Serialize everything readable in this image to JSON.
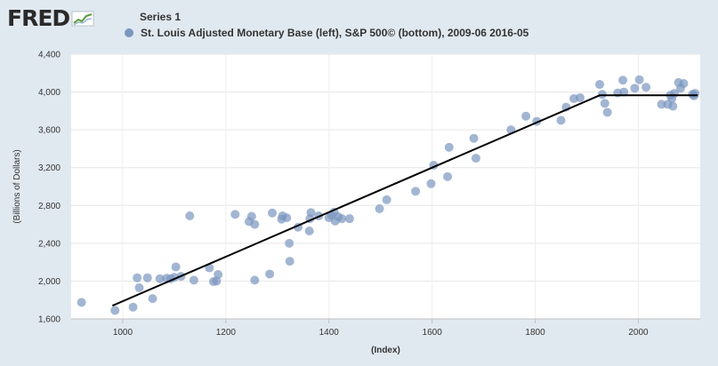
{
  "header": {
    "logo_text": "FRED",
    "logo_icon": "chart-line-icon"
  },
  "legend": {
    "title": "Series 1",
    "item_label": "St. Louis Adjusted Monetary Base (left), S&P 500© (bottom), 2009-06 2016-05",
    "dot_color": "#7b96bf"
  },
  "colors": {
    "background": "#e1e9f0",
    "plot_background": "#ffffff",
    "point": "#7b96bf",
    "trend": "#000000"
  },
  "chart_data": {
    "type": "scatter",
    "title": "",
    "xlabel": "(Index)",
    "ylabel": "(Billions of Dollars)",
    "xlim": [
      900,
      2120
    ],
    "ylim": [
      1600,
      4400
    ],
    "xticks": [
      1000,
      1200,
      1400,
      1600,
      1800,
      2000
    ],
    "yticks": [
      1600,
      2000,
      2400,
      2800,
      3200,
      3600,
      4000,
      4400
    ],
    "ytick_labels": [
      "1,600",
      "2,000",
      "2,400",
      "2,800",
      "3,200",
      "3,600",
      "4,000",
      "4,400"
    ],
    "grid": true,
    "legend_position": "top-left",
    "series": [
      {
        "name": "St. Louis Adjusted Monetary Base (left), S&P 500© (bottom), 2009-06 2016-05",
        "points": [
          [
            920,
            1775
          ],
          [
            985,
            1690
          ],
          [
            1020,
            1725
          ],
          [
            1028,
            2035
          ],
          [
            1032,
            1930
          ],
          [
            1048,
            2035
          ],
          [
            1058,
            1815
          ],
          [
            1072,
            2025
          ],
          [
            1085,
            2030
          ],
          [
            1093,
            2025
          ],
          [
            1100,
            2040
          ],
          [
            1103,
            2150
          ],
          [
            1113,
            2050
          ],
          [
            1130,
            2690
          ],
          [
            1138,
            2010
          ],
          [
            1168,
            2140
          ],
          [
            1176,
            1995
          ],
          [
            1182,
            2000
          ],
          [
            1185,
            2070
          ],
          [
            1218,
            2705
          ],
          [
            1245,
            2630
          ],
          [
            1250,
            2685
          ],
          [
            1256,
            2600
          ],
          [
            1256,
            2010
          ],
          [
            1285,
            2075
          ],
          [
            1290,
            2720
          ],
          [
            1308,
            2655
          ],
          [
            1310,
            2690
          ],
          [
            1318,
            2670
          ],
          [
            1323,
            2400
          ],
          [
            1324,
            2210
          ],
          [
            1340,
            2570
          ],
          [
            1362,
            2530
          ],
          [
            1363,
            2660
          ],
          [
            1365,
            2725
          ],
          [
            1380,
            2690
          ],
          [
            1400,
            2670
          ],
          [
            1405,
            2700
          ],
          [
            1410,
            2730
          ],
          [
            1412,
            2635
          ],
          [
            1418,
            2680
          ],
          [
            1425,
            2660
          ],
          [
            1440,
            2660
          ],
          [
            1498,
            2765
          ],
          [
            1512,
            2860
          ],
          [
            1568,
            2950
          ],
          [
            1598,
            3030
          ],
          [
            1603,
            3225
          ],
          [
            1630,
            3105
          ],
          [
            1633,
            3415
          ],
          [
            1681,
            3510
          ],
          [
            1685,
            3300
          ],
          [
            1753,
            3600
          ],
          [
            1782,
            3745
          ],
          [
            1803,
            3690
          ],
          [
            1850,
            3700
          ],
          [
            1860,
            3840
          ],
          [
            1875,
            3930
          ],
          [
            1887,
            3940
          ],
          [
            1925,
            4080
          ],
          [
            1930,
            3975
          ],
          [
            1935,
            3880
          ],
          [
            1940,
            3785
          ],
          [
            1960,
            3990
          ],
          [
            1970,
            4125
          ],
          [
            1972,
            4000
          ],
          [
            1993,
            4040
          ],
          [
            2002,
            4130
          ],
          [
            2015,
            4050
          ],
          [
            2045,
            3870
          ],
          [
            2057,
            3870
          ],
          [
            2062,
            3965
          ],
          [
            2065,
            3930
          ],
          [
            2067,
            3850
          ],
          [
            2070,
            3985
          ],
          [
            2078,
            4100
          ],
          [
            2082,
            4040
          ],
          [
            2088,
            4090
          ],
          [
            2105,
            3975
          ],
          [
            2108,
            3960
          ],
          [
            2110,
            3985
          ]
        ]
      }
    ],
    "trend_line": [
      [
        980,
        1740
      ],
      [
        1925,
        3965
      ],
      [
        2115,
        3965
      ]
    ]
  }
}
